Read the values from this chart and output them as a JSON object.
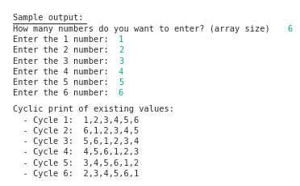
{
  "title": "Sample output:",
  "bg_color": "#ffffff",
  "text_color": "#2d2d2d",
  "green_color": "#00aa7f",
  "font_size": 7.5,
  "lines": [
    {
      "text": "How many numbers do you want to enter? (array size) ",
      "colored": "6"
    },
    {
      "text": "Enter the 1 number: ",
      "colored": "1"
    },
    {
      "text": "Enter the 2 number: ",
      "colored": "2"
    },
    {
      "text": "Enter the 3 number: ",
      "colored": "3"
    },
    {
      "text": "Enter the 4 number: ",
      "colored": "4"
    },
    {
      "text": "Enter the 5 number: ",
      "colored": "5"
    },
    {
      "text": "Enter the 6 number: ",
      "colored": "6"
    }
  ],
  "cycle_header": "Cyclic print of existing values:",
  "cycles": [
    "  - Cycle 1:  1,2,3,4,5,6",
    "  - Cycle 2:  6,1,2,3,4,5",
    "  - Cycle 3:  5,6,1,2,3,4",
    "  - Cycle 4:  4,5,6,1,2,3",
    "  - Cycle 5:  3,4,5,6,1,2",
    "  - Cycle 6:  2,3,4,5,6,1"
  ]
}
